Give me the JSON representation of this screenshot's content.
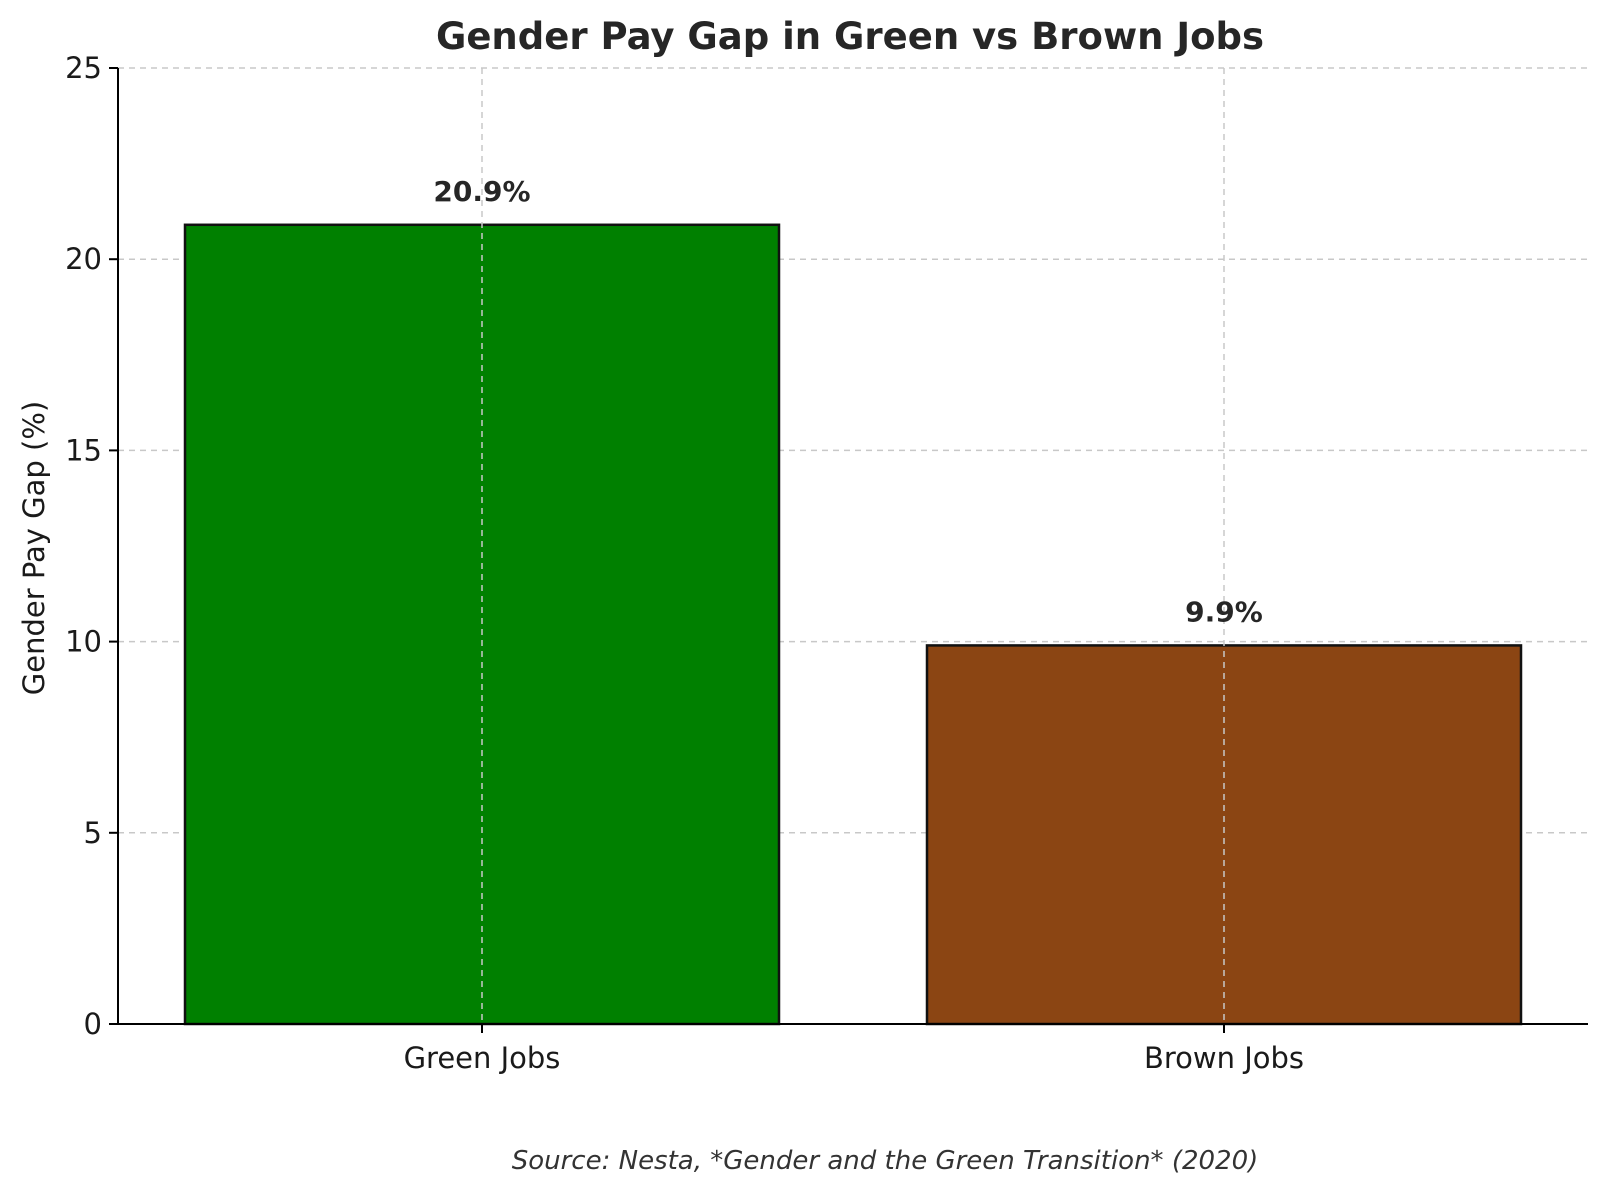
{
  "chart_data": {
    "type": "bar",
    "title": "Gender Pay Gap in Green vs Brown Jobs",
    "xlabel": "",
    "ylabel": "Gender Pay Gap (%)",
    "categories": [
      "Green Jobs",
      "Brown Jobs"
    ],
    "values": [
      20.9,
      9.9
    ],
    "data_labels": [
      "20.9%",
      "9.9%"
    ],
    "colors": [
      "#008000",
      "#8b4513"
    ],
    "ylim": [
      0,
      25
    ],
    "yticks": [
      0,
      5,
      10,
      15,
      20,
      25
    ],
    "grid": true,
    "legend": "none"
  },
  "source_note": "Source: Nesta, *Gender and the Green Transition* (2020)"
}
